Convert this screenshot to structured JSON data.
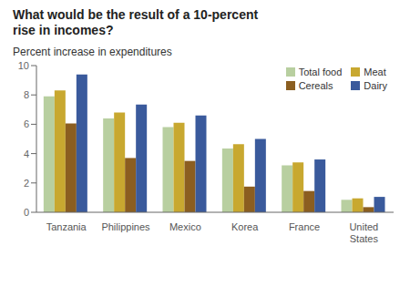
{
  "chart_data": {
    "type": "bar",
    "title": "What would be the result of a 10-percent\nrise in incomes?",
    "ylabel": "Percent increase in expenditures",
    "categories": [
      "Tanzania",
      "Philippines",
      "Mexico",
      "Korea",
      "France",
      "United\nStates"
    ],
    "series": [
      {
        "name": "Total food",
        "color": "#b8cfa0",
        "values": [
          7.9,
          6.4,
          5.8,
          4.35,
          3.2,
          0.85
        ]
      },
      {
        "name": "Meat",
        "color": "#c8a830",
        "values": [
          8.3,
          6.8,
          6.1,
          4.65,
          3.4,
          0.95
        ]
      },
      {
        "name": "Cereals",
        "color": "#8b5e20",
        "values": [
          6.05,
          3.7,
          3.5,
          1.75,
          1.45,
          0.35
        ]
      },
      {
        "name": "Dairy",
        "color": "#3a5a9c",
        "values": [
          9.4,
          7.35,
          6.6,
          5.0,
          3.6,
          1.05
        ]
      }
    ],
    "ylim": [
      0,
      10
    ],
    "yticks": [
      0,
      2,
      4,
      6,
      8,
      10
    ],
    "grid": false,
    "legend": "upper right"
  }
}
